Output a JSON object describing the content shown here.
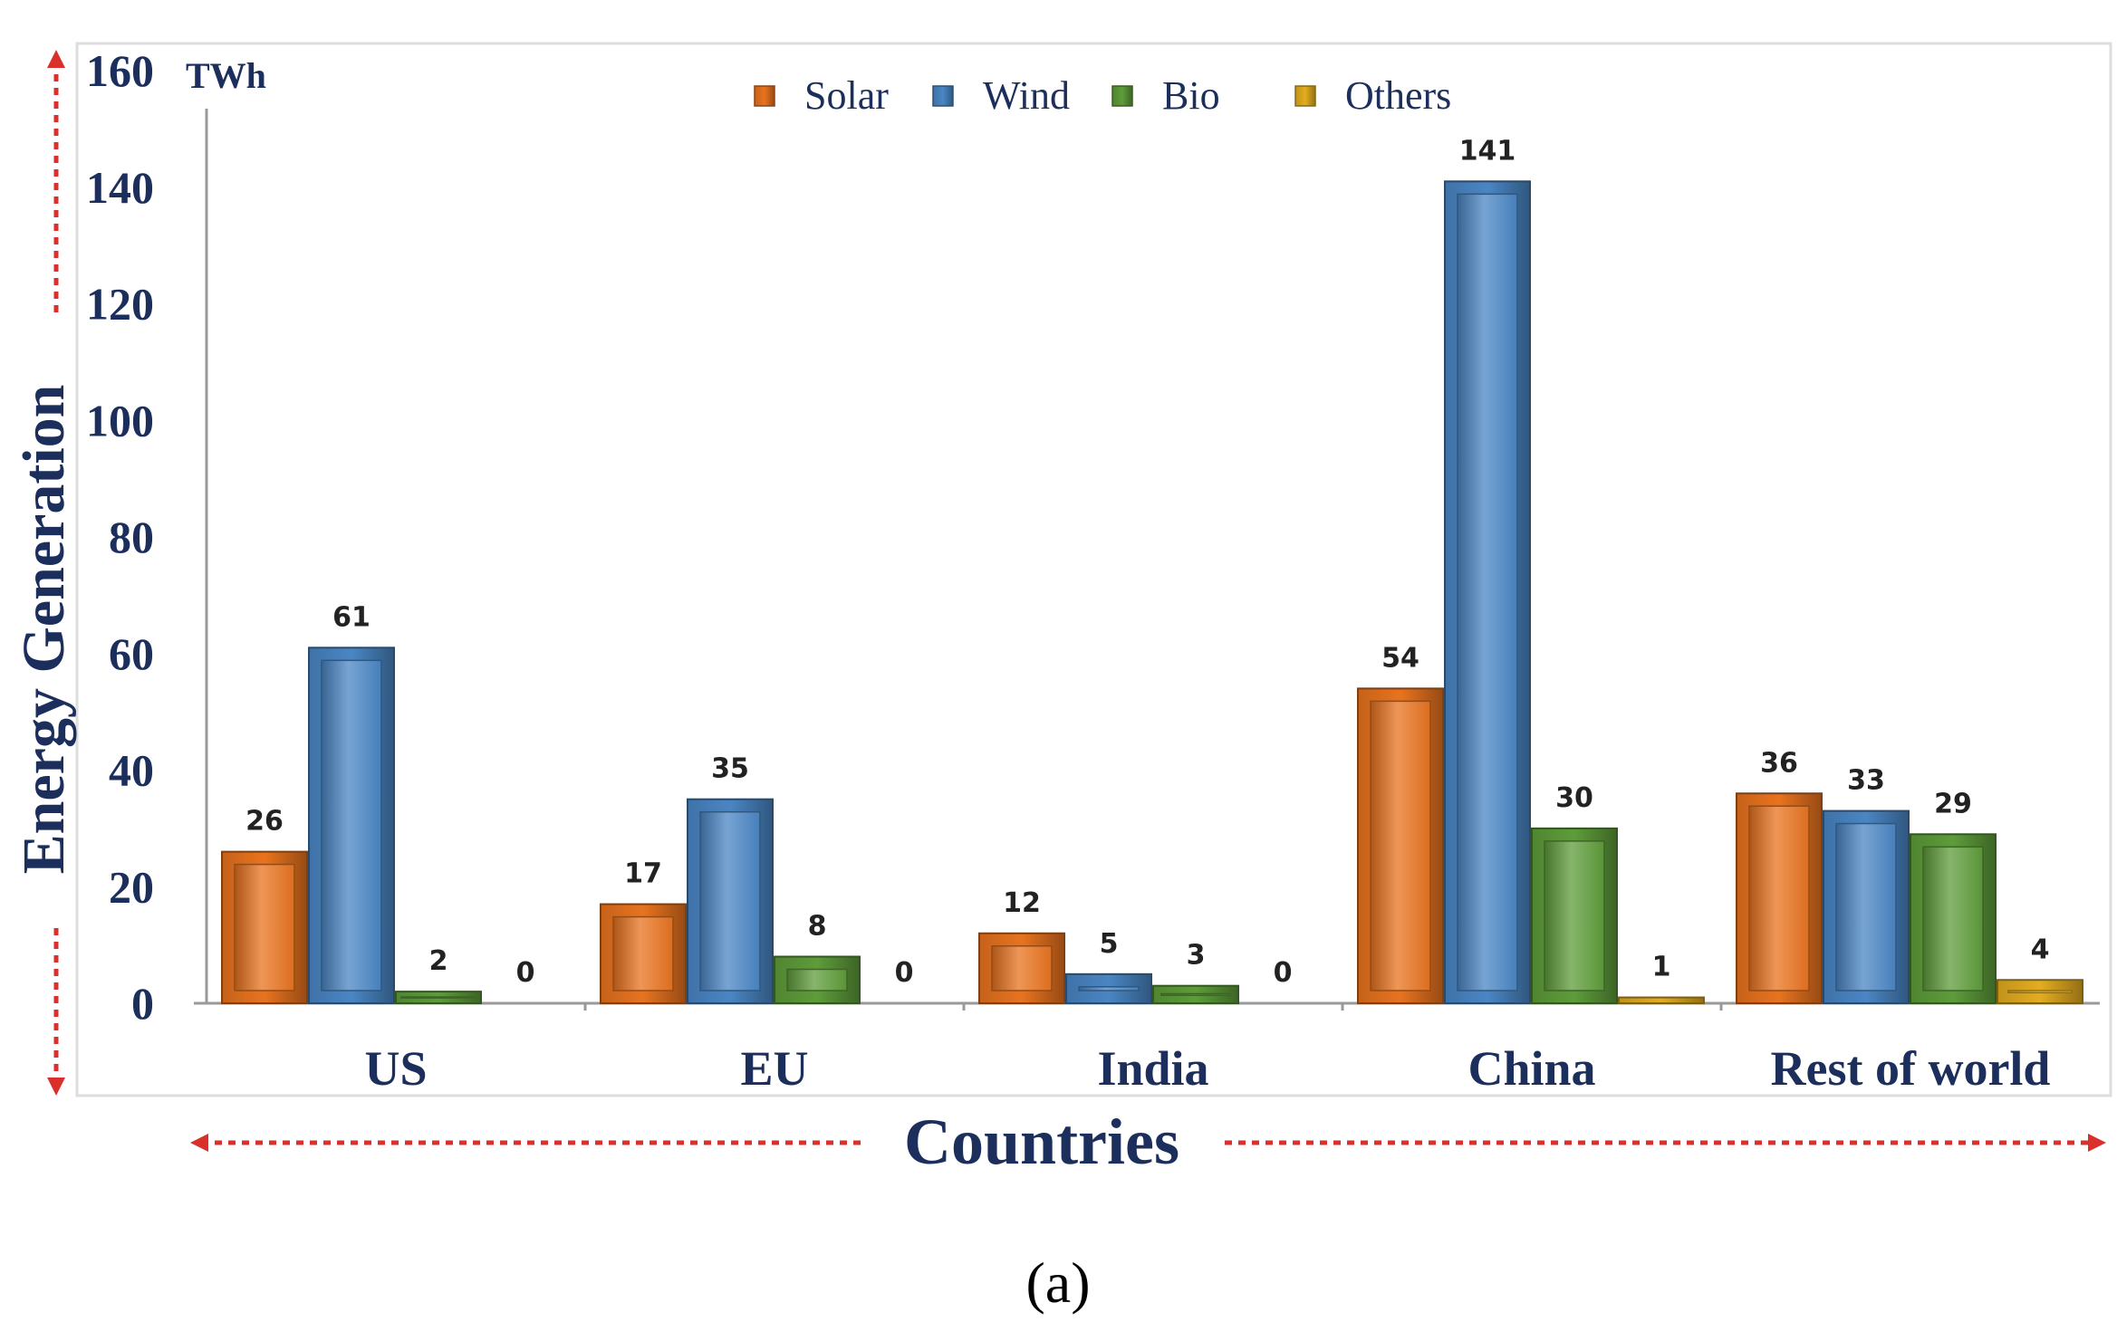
{
  "chart_data": {
    "type": "bar",
    "ylabel": "Energy Generation",
    "xlabel": "Countries",
    "unit": "TWh",
    "caption": "(a)",
    "ylim": [
      0,
      160
    ],
    "yticks": [
      0,
      20,
      40,
      60,
      80,
      100,
      120,
      140,
      160
    ],
    "categories": [
      "US",
      "EU",
      "India",
      "China",
      "Rest of world"
    ],
    "series": [
      {
        "name": "Solar",
        "values": [
          26,
          17,
          12,
          54,
          36
        ],
        "labels": [
          "26",
          "17",
          "12",
          "54",
          "36"
        ],
        "color": "#e8731f"
      },
      {
        "name": "Wind",
        "values": [
          61,
          35,
          5,
          141,
          33
        ],
        "labels": [
          "61",
          "35",
          "5",
          "141",
          "33"
        ],
        "color": "#4a86c4"
      },
      {
        "name": "Bio",
        "values": [
          2,
          8,
          3,
          30,
          29
        ],
        "labels": [
          "2",
          "8",
          "3",
          "30",
          "29"
        ],
        "color": "#5e9c3a"
      },
      {
        "name": "Others",
        "values": [
          0,
          0,
          0,
          1,
          4
        ],
        "labels": [
          "0",
          "0",
          "0",
          "1",
          "4"
        ],
        "color": "#e3ad20"
      }
    ],
    "legend_position": "top-center",
    "grid": false
  }
}
